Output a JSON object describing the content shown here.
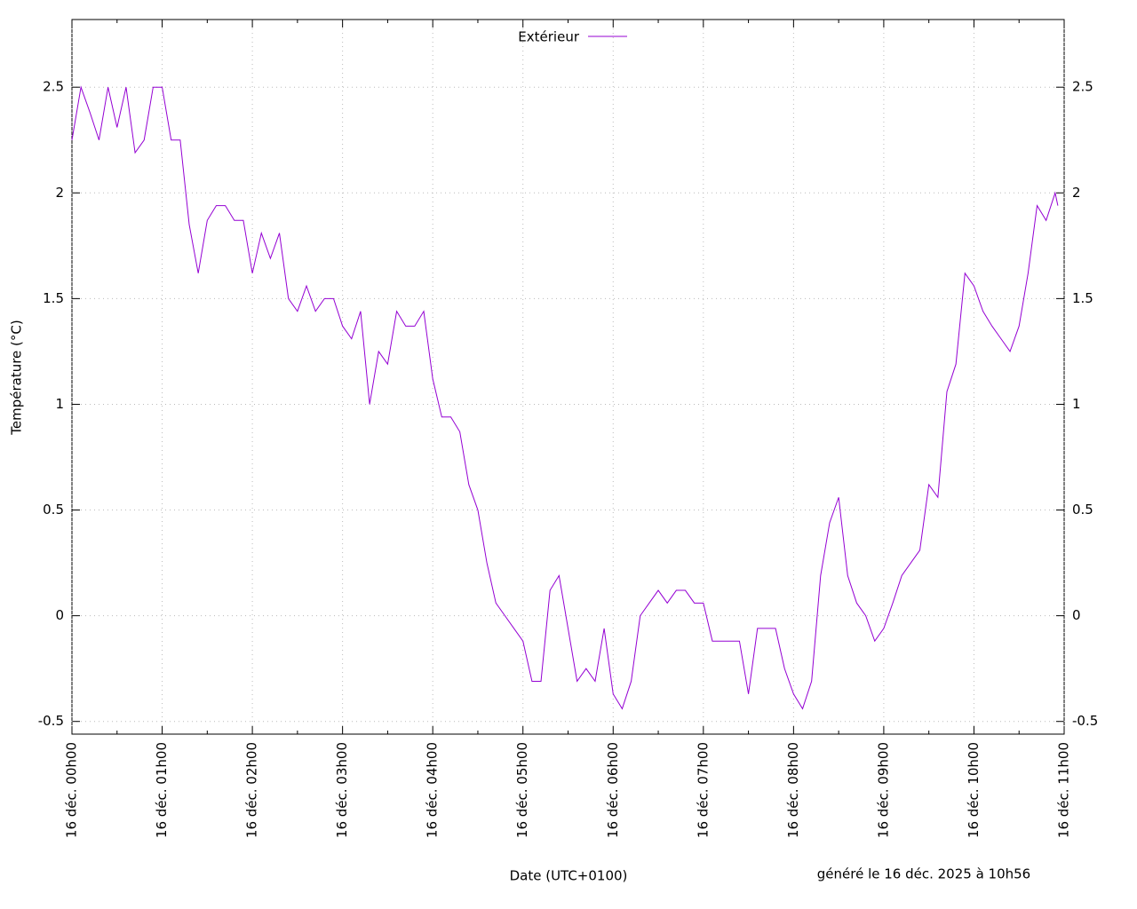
{
  "chart_data": {
    "type": "line",
    "y_label": "Température (°C)",
    "x_label": "Date (UTC+0100)",
    "annotation": "généré le 16 déc. 2025 à 10h56",
    "legend": "top",
    "grid": true,
    "xlim": [
      0,
      11
    ],
    "xticks": [
      {
        "value": 0,
        "label": "16 déc. 00h00"
      },
      {
        "value": 1,
        "label": "16 déc. 01h00"
      },
      {
        "value": 2,
        "label": "16 déc. 02h00"
      },
      {
        "value": 3,
        "label": "16 déc. 03h00"
      },
      {
        "value": 4,
        "label": "16 déc. 04h00"
      },
      {
        "value": 5,
        "label": "16 déc. 05h00"
      },
      {
        "value": 6,
        "label": "16 déc. 06h00"
      },
      {
        "value": 7,
        "label": "16 déc. 07h00"
      },
      {
        "value": 8,
        "label": "16 déc. 08h00"
      },
      {
        "value": 9,
        "label": "16 déc. 09h00"
      },
      {
        "value": 10,
        "label": "16 déc. 10h00"
      },
      {
        "value": 11,
        "label": "16 déc. 11h00"
      }
    ],
    "ylim": [
      -0.56,
      2.82
    ],
    "yticks": [
      -0.5,
      0,
      0.5,
      1,
      1.5,
      2,
      2.5
    ],
    "x": [
      0,
      0.1,
      0.2,
      0.3,
      0.4,
      0.5,
      0.6,
      0.7,
      0.8,
      0.9,
      1.0,
      1.1,
      1.2,
      1.3,
      1.4,
      1.5,
      1.6,
      1.7,
      1.8,
      1.9,
      2.0,
      2.1,
      2.2,
      2.3,
      2.4,
      2.5,
      2.6,
      2.7,
      2.8,
      2.9,
      3.0,
      3.1,
      3.2,
      3.3,
      3.4,
      3.5,
      3.6,
      3.7,
      3.8,
      3.9,
      4.0,
      4.1,
      4.2,
      4.3,
      4.4,
      4.5,
      4.6,
      4.7,
      4.8,
      4.9,
      5.0,
      5.1,
      5.2,
      5.3,
      5.4,
      5.5,
      5.6,
      5.7,
      5.8,
      5.9,
      6.0,
      6.1,
      6.2,
      6.3,
      6.4,
      6.5,
      6.6,
      6.7,
      6.8,
      6.9,
      7.0,
      7.1,
      7.2,
      7.3,
      7.4,
      7.5,
      7.6,
      7.7,
      7.8,
      7.9,
      8.0,
      8.1,
      8.2,
      8.3,
      8.4,
      8.5,
      8.6,
      8.7,
      8.8,
      8.9,
      9.0,
      9.1,
      9.2,
      9.3,
      9.4,
      9.5,
      9.6,
      9.7,
      9.8,
      9.9,
      10.0,
      10.1,
      10.2,
      10.3,
      10.4,
      10.5,
      10.6,
      10.7,
      10.8,
      10.9,
      10.93
    ],
    "series": [
      {
        "name": "Extérieur",
        "color": "#9400d3",
        "values": [
          2.25,
          2.5,
          2.38,
          2.25,
          2.5,
          2.31,
          2.5,
          2.19,
          2.25,
          2.5,
          2.5,
          2.25,
          2.25,
          1.85,
          1.62,
          1.87,
          1.94,
          1.94,
          1.87,
          1.87,
          1.62,
          1.81,
          1.69,
          1.81,
          1.5,
          1.44,
          1.56,
          1.44,
          1.5,
          1.5,
          1.37,
          1.31,
          1.44,
          1.0,
          1.25,
          1.19,
          1.44,
          1.37,
          1.37,
          1.44,
          1.12,
          0.94,
          0.94,
          0.87,
          0.62,
          0.5,
          0.25,
          0.06,
          0.0,
          -0.06,
          -0.12,
          -0.31,
          -0.31,
          0.12,
          0.19,
          -0.06,
          -0.31,
          -0.25,
          -0.31,
          -0.06,
          -0.37,
          -0.44,
          -0.31,
          0.0,
          0.06,
          0.12,
          0.06,
          0.12,
          0.12,
          0.06,
          0.06,
          -0.12,
          -0.12,
          -0.12,
          -0.12,
          -0.37,
          -0.06,
          -0.06,
          -0.06,
          -0.25,
          -0.37,
          -0.44,
          -0.31,
          0.19,
          0.44,
          0.56,
          0.19,
          0.06,
          0.0,
          -0.12,
          -0.06,
          0.06,
          0.19,
          0.25,
          0.31,
          0.62,
          0.56,
          1.06,
          1.19,
          1.62,
          1.56,
          1.44,
          1.37,
          1.31,
          1.25,
          1.37,
          1.62,
          1.94,
          1.87,
          2.0,
          1.94
        ]
      }
    ]
  }
}
